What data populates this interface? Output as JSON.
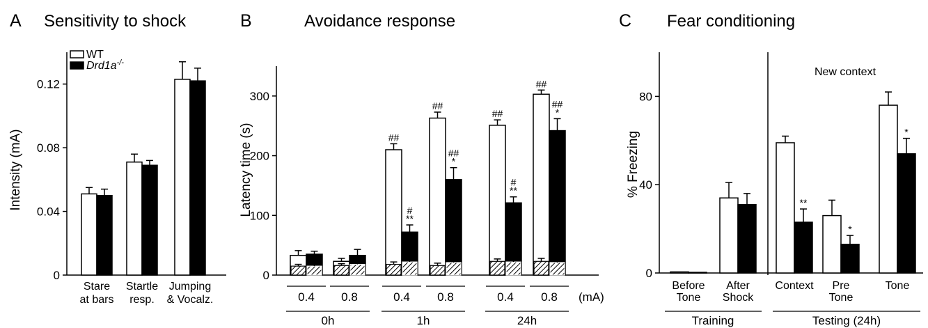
{
  "chart_data": [
    {
      "type": "bar",
      "panel": "A",
      "title": "Sensitivity to shock",
      "ylabel": "Intensity (mA)",
      "ylim": [
        0,
        0.14
      ],
      "yticks": [
        "0",
        "0.04",
        "0.08",
        "0.12"
      ],
      "categories": [
        [
          "Stare",
          "at bars"
        ],
        [
          "Startle",
          "resp."
        ],
        [
          "Jumping",
          "& Vocalz."
        ]
      ],
      "legend": {
        "placement": "top-left",
        "entries": [
          "WT",
          "Drd1a"
        ],
        "superscript": "-/-"
      },
      "series": [
        {
          "name": "WT",
          "color": "#ffffff",
          "values": [
            0.051,
            0.071,
            0.123
          ],
          "errors": [
            0.004,
            0.005,
            0.011
          ]
        },
        {
          "name": "Drd1a -/-",
          "color": "#000000",
          "values": [
            0.05,
            0.069,
            0.122
          ],
          "errors": [
            0.004,
            0.003,
            0.008
          ]
        }
      ]
    },
    {
      "type": "bar",
      "panel": "B",
      "title": "Avoidance response",
      "ylabel": "Latency time (s)",
      "ylim": [
        0,
        350
      ],
      "yticks": [
        "0",
        "100",
        "200",
        "300"
      ],
      "unit_label": "(mA)",
      "groups": [
        {
          "label": "0h",
          "intensities": [
            "0.4",
            "0.8"
          ]
        },
        {
          "label": "1h",
          "intensities": [
            "0.4",
            "0.8"
          ]
        },
        {
          "label": "24h",
          "intensities": [
            "0.4",
            "0.8"
          ]
        }
      ],
      "series": [
        {
          "name": "WT",
          "color": "#ffffff",
          "values": [
            33,
            23,
            210,
            263,
            251,
            303
          ],
          "errors": [
            8,
            5,
            10,
            10,
            9,
            7
          ],
          "sig": [
            "",
            "",
            "##",
            "##",
            "##",
            "##"
          ]
        },
        {
          "name": "Drd1a -/-",
          "color": "#000000",
          "values": [
            35,
            33,
            72,
            160,
            121,
            242
          ],
          "errors": [
            5,
            10,
            12,
            20,
            10,
            20
          ],
          "sig": [
            "",
            "",
            "#\n**",
            "##\n*",
            "#\n**",
            "##\n*"
          ]
        }
      ],
      "hatched_overlay": {
        "WT": [
          15,
          16,
          18,
          16,
          23,
          23
        ],
        "Drd1a -/-": [
          15,
          18,
          22,
          21,
          22,
          21
        ],
        "errors": [
          [
            3,
            3,
            4,
            4,
            4,
            5
          ],
          [
            3,
            3,
            10,
            10,
            6,
            5
          ]
        ]
      }
    },
    {
      "type": "bar",
      "panel": "C",
      "title": "Fear conditioning",
      "ylabel": "% Freezing",
      "ylim": [
        0,
        100
      ],
      "yticks": [
        "0",
        "40",
        "80"
      ],
      "annotation": "New context",
      "categories": [
        [
          "Before",
          "Tone"
        ],
        [
          "After",
          "Shock"
        ],
        [
          "Context"
        ],
        [
          "Pre",
          "Tone"
        ],
        [
          "Tone"
        ]
      ],
      "phases": [
        {
          "label": "Training",
          "covers": [
            0,
            1
          ]
        },
        {
          "label": "Testing (24h)",
          "covers": [
            2,
            4
          ]
        }
      ],
      "series": [
        {
          "name": "WT",
          "color": "#ffffff",
          "values": [
            0.5,
            34,
            59,
            26,
            76
          ],
          "errors": [
            0.3,
            7,
            3,
            7,
            6
          ],
          "sig": [
            "",
            "",
            "",
            "",
            ""
          ]
        },
        {
          "name": "Drd1a -/-",
          "color": "#000000",
          "values": [
            0.3,
            31,
            23,
            13,
            54
          ],
          "errors": [
            0.2,
            5,
            6,
            4,
            7
          ],
          "sig": [
            "",
            "",
            "**",
            "*",
            "*"
          ]
        }
      ]
    }
  ]
}
